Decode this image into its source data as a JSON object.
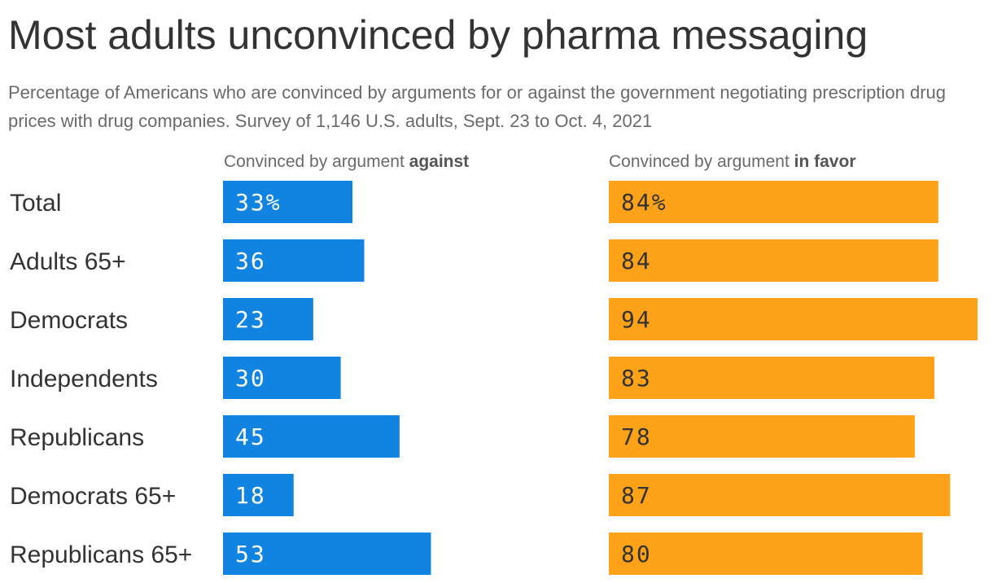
{
  "title": "Most adults unconvinced by pharma messaging",
  "subtitle": "Percentage of Americans who are convinced by arguments for or against the government negotiating prescription drug prices with drug companies. Survey of 1,146 U.S. adults, Sept. 23 to Oct. 4, 2021",
  "headers": {
    "against_prefix": "Convinced by argument ",
    "against_bold": "against",
    "favor_prefix": "Convinced by argument ",
    "favor_bold": "in favor"
  },
  "colors": {
    "against": "#1184e1",
    "favor": "#fea319",
    "against_text": "#ffffff",
    "favor_text": "#333333"
  },
  "chart_data": {
    "type": "bar",
    "categories": [
      "Total",
      "Adults 65+",
      "Democrats",
      "Independents",
      "Republicans",
      "Democrats 65+",
      "Republicans 65+"
    ],
    "series": [
      {
        "name": "Convinced by argument against",
        "values": [
          33,
          36,
          23,
          30,
          45,
          18,
          53
        ],
        "labels": [
          "33%",
          "36",
          "23",
          "30",
          "45",
          "18",
          "53"
        ]
      },
      {
        "name": "Convinced by argument in favor",
        "values": [
          84,
          84,
          94,
          83,
          78,
          87,
          80
        ],
        "labels": [
          "84%",
          "84",
          "94",
          "83",
          "78",
          "87",
          "80"
        ]
      }
    ],
    "xlim": [
      0,
      100
    ],
    "grid": false,
    "legend": "none"
  }
}
